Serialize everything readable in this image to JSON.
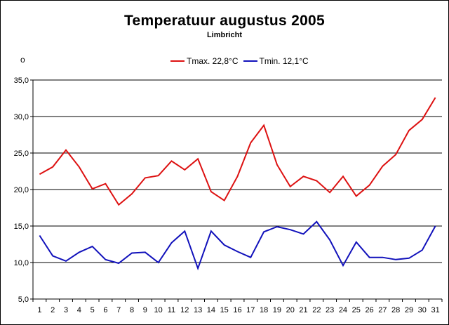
{
  "chart_data": {
    "type": "line",
    "title": "Temperatuur augustus 2005",
    "subtitle": "Limbricht",
    "unit_label": "o",
    "xlabel": "",
    "ylabel": "",
    "categories": [
      1,
      2,
      3,
      4,
      5,
      6,
      7,
      8,
      9,
      10,
      11,
      12,
      13,
      14,
      15,
      16,
      17,
      18,
      19,
      20,
      21,
      22,
      23,
      24,
      25,
      26,
      27,
      28,
      29,
      30,
      31
    ],
    "ylim": [
      5,
      35
    ],
    "yticks": [
      5,
      10,
      15,
      20,
      25,
      30,
      35
    ],
    "ytick_labels": [
      "5,0",
      "10,0",
      "15,0",
      "20,0",
      "25,0",
      "30,0",
      "35,0"
    ],
    "grid": "horizontal",
    "legend_position": "top",
    "series": [
      {
        "name": "Tmax. 22,8°C",
        "color": "#dd1111",
        "values": [
          22.1,
          23.1,
          25.4,
          23.1,
          20.1,
          20.8,
          17.9,
          19.4,
          21.6,
          21.9,
          23.9,
          22.7,
          24.2,
          19.7,
          18.5,
          21.8,
          26.4,
          28.8,
          23.4,
          20.4,
          21.8,
          21.2,
          19.6,
          21.8,
          19.1,
          20.6,
          23.2,
          24.8,
          28.1,
          29.6,
          32.6
        ]
      },
      {
        "name": "Tmin. 12,1°C",
        "color": "#1111bb",
        "values": [
          13.7,
          10.9,
          10.2,
          11.4,
          12.2,
          10.4,
          9.9,
          11.3,
          11.4,
          10.0,
          12.7,
          14.3,
          9.2,
          14.3,
          12.4,
          11.5,
          10.7,
          14.2,
          14.9,
          14.5,
          13.9,
          15.6,
          13.1,
          9.6,
          12.8,
          10.7,
          10.7,
          10.4,
          10.6,
          11.7,
          15.0
        ]
      }
    ]
  }
}
